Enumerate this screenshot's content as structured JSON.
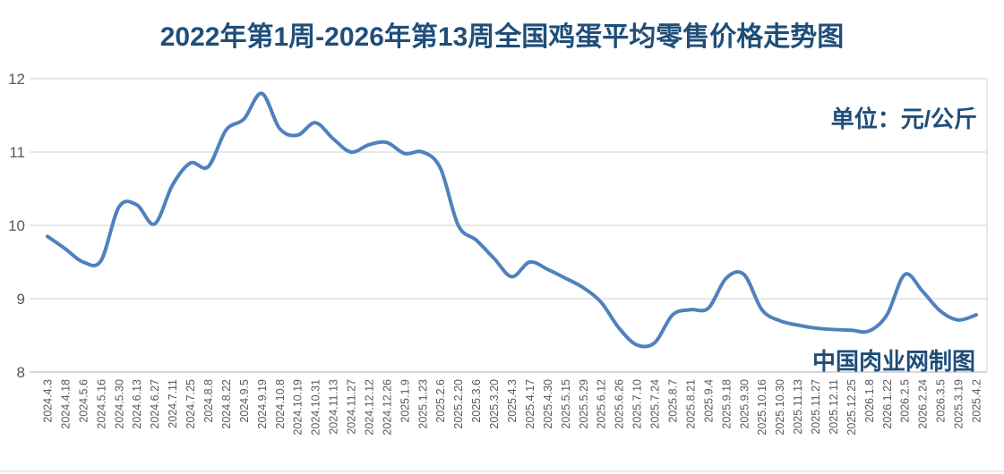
{
  "page": {
    "background": "#ffffff"
  },
  "chart_data": {
    "type": "line",
    "title": "2022年第1周-2026年第13周全国鸡蛋平均零售价格走势图",
    "unit_label": "单位：元/公斤",
    "credit": "中国肉业网制图",
    "xlabel": "",
    "ylabel": "",
    "ylim": [
      8,
      12
    ],
    "y_ticks": [
      12,
      11,
      10,
      9,
      8
    ],
    "grid": "horizontal",
    "legend_position": "none",
    "smooth": true,
    "markers": false,
    "colors": {
      "line": "#4F81BD",
      "title_text": "#1F4E79",
      "tick_text": "#595959",
      "gridline": "#D9D9D9",
      "axis_line": "#BFBFBF"
    },
    "categories": [
      "2024.4.3",
      "2024.4.18",
      "2024.5.6",
      "2024.5.16",
      "2024.5.30",
      "2024.6.13",
      "2024.6.27",
      "2024.7.11",
      "2024.7.25",
      "2024.8.8",
      "2024.8.22",
      "2024.9.5",
      "2024.9.19",
      "2024.10.8",
      "2024.10.19",
      "2024.10.31",
      "2024.11.13",
      "2024.11.27",
      "2024.12.12",
      "2024.12.26",
      "2025.1.9",
      "2025.1.23",
      "2025.2.6",
      "2025.2.20",
      "2025.3.6",
      "2025.3.20",
      "2025.4.3",
      "2025.4.17",
      "2025.4.30",
      "2025.5.15",
      "2025.5.29",
      "2025.6.12",
      "2025.6.26",
      "2025.7.10",
      "2025.7.24",
      "2025.8.7",
      "2025.8.21",
      "2025.9.4",
      "2025.9.18",
      "2025.9.30",
      "2025.10.16",
      "2025.10.30",
      "2025.11.13",
      "2025.11.27",
      "2025.12.11",
      "2025.12.25",
      "2026.1.8",
      "2026.1.22",
      "2026.2.5",
      "2026.2.24",
      "2026.3.5",
      "2025.3.19",
      "2025.4.2"
    ],
    "values": [
      9.85,
      9.68,
      9.5,
      9.52,
      10.25,
      10.28,
      10.02,
      10.55,
      10.85,
      10.8,
      11.3,
      11.45,
      11.8,
      11.32,
      11.23,
      11.4,
      11.18,
      11.0,
      11.1,
      11.13,
      10.98,
      11.0,
      10.78,
      10.0,
      9.8,
      9.55,
      9.3,
      9.5,
      9.4,
      9.28,
      9.15,
      8.95,
      8.6,
      8.37,
      8.4,
      8.78,
      8.85,
      8.87,
      9.28,
      9.33,
      8.85,
      8.7,
      8.64,
      8.6,
      8.58,
      8.57,
      8.56,
      8.78,
      9.33,
      9.1,
      8.83,
      8.71,
      8.78
    ]
  }
}
